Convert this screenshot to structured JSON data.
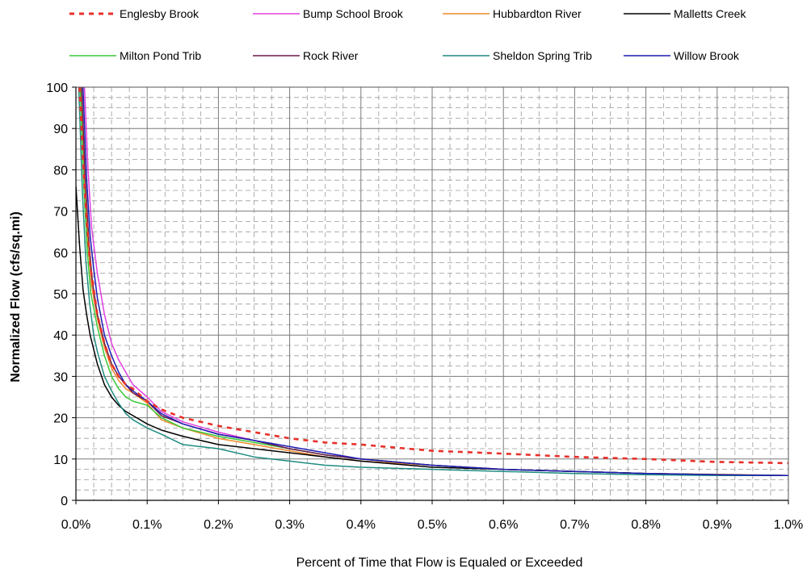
{
  "chart_data": {
    "type": "line",
    "title": "",
    "xlabel": "Percent of Time that Flow is Equaled or Exceeded",
    "ylabel": "Normalized  Flow (cfs/sq.mi)",
    "xlim": [
      0,
      1.0
    ],
    "ylim": [
      0,
      100
    ],
    "x_ticks": [
      0,
      0.1,
      0.2,
      0.3,
      0.4,
      0.5,
      0.6,
      0.7,
      0.8,
      0.9,
      1.0
    ],
    "x_tick_labels": [
      "0.0%",
      "0.1%",
      "0.2%",
      "0.3%",
      "0.4%",
      "0.5%",
      "0.6%",
      "0.7%",
      "0.8%",
      "0.9%",
      "1.0%"
    ],
    "y_ticks": [
      0,
      10,
      20,
      30,
      40,
      50,
      60,
      70,
      80,
      90,
      100
    ],
    "y_tick_labels": [
      "0",
      "10",
      "20",
      "30",
      "40",
      "50",
      "60",
      "70",
      "80",
      "90",
      "100"
    ],
    "grid": {
      "major": true,
      "minor_dashed": true
    },
    "legend_position": "top",
    "series": [
      {
        "name": "Englesby Brook",
        "color": "#e8302a",
        "dashed": true,
        "x": [
          0.005,
          0.01,
          0.015,
          0.02,
          0.03,
          0.04,
          0.05,
          0.06,
          0.07,
          0.08,
          0.1,
          0.12,
          0.15,
          0.2,
          0.25,
          0.3,
          0.35,
          0.4,
          0.5,
          0.6,
          0.7,
          0.8,
          0.9,
          1.0
        ],
        "y": [
          100,
          82,
          68,
          57,
          45,
          38,
          33,
          30,
          28,
          27,
          24,
          22,
          20,
          18,
          16.5,
          15,
          14,
          13.5,
          12,
          11.3,
          10.5,
          10,
          9.3,
          9
        ]
      },
      {
        "name": "Bump School Brook",
        "color": "#e040e0",
        "x": [
          0.012,
          0.017,
          0.022,
          0.03,
          0.04,
          0.05,
          0.06,
          0.07,
          0.08,
          0.1,
          0.12,
          0.15,
          0.2,
          0.25,
          0.3,
          0.35,
          0.4,
          0.5,
          0.6,
          0.7,
          0.8,
          0.9,
          1.0
        ],
        "y": [
          100,
          80,
          66,
          55,
          45,
          38,
          34,
          31,
          28,
          25,
          21.5,
          19,
          16.5,
          14.5,
          12.5,
          11,
          10,
          8.5,
          7.5,
          7,
          6.5,
          6.2,
          6
        ]
      },
      {
        "name": "Hubbardton River",
        "color": "#f08a2c",
        "x": [
          0.007,
          0.012,
          0.017,
          0.022,
          0.03,
          0.04,
          0.05,
          0.06,
          0.07,
          0.08,
          0.1,
          0.12,
          0.15,
          0.2,
          0.25,
          0.3,
          0.35,
          0.4,
          0.5,
          0.6,
          0.7,
          0.8,
          0.9,
          1.0
        ],
        "y": [
          100,
          78,
          62,
          52,
          44,
          37,
          32,
          29,
          27,
          26,
          23.5,
          19.5,
          17.5,
          15,
          13.5,
          12,
          10.5,
          9.5,
          8.5,
          7.5,
          7,
          6.5,
          6.3,
          6
        ]
      },
      {
        "name": "Malletts Creek",
        "color": "#000000",
        "x": [
          0.0,
          0.005,
          0.01,
          0.015,
          0.02,
          0.03,
          0.04,
          0.05,
          0.06,
          0.07,
          0.08,
          0.1,
          0.12,
          0.15,
          0.2,
          0.25,
          0.3,
          0.35,
          0.4,
          0.5,
          0.6,
          0.7,
          0.8,
          0.9,
          1.0
        ],
        "y": [
          76,
          62,
          51,
          45,
          40,
          33,
          28,
          25,
          23,
          21.5,
          20.5,
          18.5,
          17,
          15.5,
          13.5,
          12.5,
          11.5,
          10.5,
          9.5,
          8,
          7.5,
          7,
          6.5,
          6.2,
          6
        ]
      },
      {
        "name": "Milton Pond Trib",
        "color": "#39c83a",
        "x": [
          0.006,
          0.011,
          0.016,
          0.021,
          0.03,
          0.04,
          0.05,
          0.06,
          0.07,
          0.08,
          0.1,
          0.12,
          0.15,
          0.2,
          0.25,
          0.3,
          0.35,
          0.4,
          0.5,
          0.6,
          0.7,
          0.8,
          0.9,
          1.0
        ],
        "y": [
          100,
          76,
          60,
          50,
          42,
          35,
          30,
          27,
          25,
          24,
          23,
          20,
          17.5,
          15.5,
          14,
          12.5,
          11,
          10,
          8.5,
          7.5,
          7,
          6.5,
          6.2,
          6
        ]
      },
      {
        "name": "Rock River",
        "color": "#6a1a4a",
        "x": [
          0.008,
          0.013,
          0.018,
          0.023,
          0.03,
          0.04,
          0.05,
          0.06,
          0.07,
          0.08,
          0.1,
          0.12,
          0.15,
          0.2,
          0.25,
          0.3,
          0.35,
          0.4,
          0.5,
          0.6,
          0.7,
          0.8,
          0.9,
          1.0
        ],
        "y": [
          100,
          78,
          63,
          53,
          45,
          38,
          33,
          30,
          28,
          26,
          24,
          20.5,
          18.5,
          16,
          14.5,
          12.5,
          11,
          10,
          8.5,
          7.5,
          7,
          6.5,
          6.2,
          6
        ]
      },
      {
        "name": "Sheldon Spring Trib",
        "color": "#1e8c82",
        "x": [
          0.004,
          0.009,
          0.014,
          0.019,
          0.025,
          0.03,
          0.04,
          0.05,
          0.06,
          0.07,
          0.08,
          0.1,
          0.12,
          0.15,
          0.2,
          0.25,
          0.3,
          0.35,
          0.4,
          0.5,
          0.6,
          0.7,
          0.8,
          0.9,
          1.0
        ],
        "y": [
          100,
          75,
          58,
          48,
          40,
          36,
          30,
          26.5,
          23.5,
          21,
          19.5,
          17.5,
          16,
          13.5,
          12.5,
          10.5,
          9.5,
          8.5,
          8,
          7.5,
          7,
          6.5,
          6.2,
          6,
          6
        ]
      },
      {
        "name": "Willow Brook",
        "color": "#1c1cb4",
        "x": [
          0.01,
          0.015,
          0.02,
          0.025,
          0.03,
          0.04,
          0.05,
          0.06,
          0.07,
          0.08,
          0.1,
          0.12,
          0.15,
          0.2,
          0.25,
          0.3,
          0.35,
          0.4,
          0.5,
          0.6,
          0.7,
          0.8,
          0.9,
          1.0
        ],
        "y": [
          100,
          78,
          64,
          56,
          49,
          40,
          35,
          31,
          28,
          26.5,
          24,
          21,
          18.5,
          16,
          14.5,
          13,
          11.5,
          10,
          8.5,
          7.5,
          7,
          6.5,
          6.2,
          6
        ]
      }
    ]
  }
}
